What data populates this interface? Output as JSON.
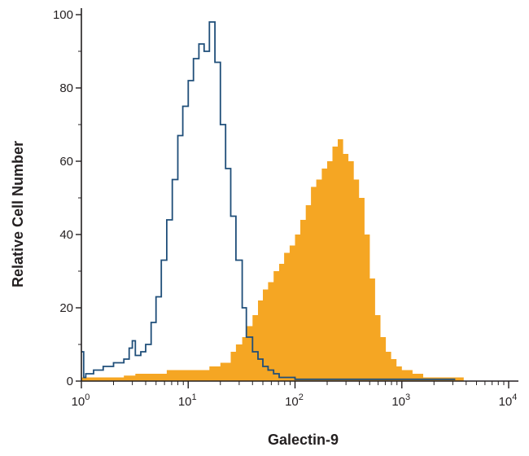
{
  "chart_data": {
    "type": "area",
    "title": "",
    "xlabel": "Galectin-9",
    "ylabel": "Relative Cell Number",
    "x_scale": "log10",
    "xlim": [
      1,
      10000
    ],
    "ylim": [
      0,
      100
    ],
    "x_ticks": [
      {
        "value": 1,
        "base": "10",
        "exp": "0"
      },
      {
        "value": 10,
        "base": "10",
        "exp": "1"
      },
      {
        "value": 100,
        "base": "10",
        "exp": "2"
      },
      {
        "value": 1000,
        "base": "10",
        "exp": "3"
      },
      {
        "value": 10000,
        "base": "10",
        "exp": "4"
      }
    ],
    "y_ticks": [
      "0",
      "20",
      "40",
      "60",
      "80",
      "100"
    ],
    "y_tick_values": [
      0,
      20,
      40,
      60,
      80,
      100
    ],
    "grid": false,
    "legend": "none",
    "series": [
      {
        "style": "filled",
        "color": "#f5a623",
        "x": [
          1.0,
          1.6,
          2.0,
          2.5,
          3.2,
          4.0,
          5.0,
          6.3,
          8.0,
          10,
          12.6,
          15.8,
          20,
          25,
          28,
          32,
          35,
          40,
          45,
          50,
          56,
          63,
          71,
          79,
          89,
          100,
          112,
          126,
          141,
          158,
          178,
          200,
          224,
          251,
          282,
          316,
          355,
          398,
          447,
          501,
          562,
          631,
          708,
          794,
          891,
          1000,
          1259,
          1585,
          1995,
          2512,
          3162,
          3800
        ],
        "y": [
          1,
          1,
          1,
          1.5,
          2,
          2,
          2,
          3,
          3,
          3,
          3,
          4,
          5,
          8,
          10,
          12,
          15,
          18,
          22,
          25,
          27,
          30,
          32,
          35,
          37,
          40,
          44,
          48,
          53,
          55,
          58,
          60,
          64,
          66,
          62,
          60,
          55,
          50,
          40,
          28,
          18,
          12,
          8,
          6,
          4,
          3,
          2,
          1,
          1,
          1,
          1,
          1
        ]
      },
      {
        "style": "outline",
        "color": "#1f4e79",
        "x": [
          1.0,
          1.05,
          1.1,
          1.3,
          1.6,
          2.0,
          2.5,
          2.8,
          3.0,
          3.2,
          3.6,
          4.0,
          4.5,
          5.0,
          5.6,
          6.3,
          7.1,
          8.0,
          8.9,
          10,
          11.2,
          12.6,
          14.1,
          15.8,
          17.8,
          20,
          22.4,
          25,
          28,
          32,
          35,
          40,
          45,
          50,
          56,
          63,
          71,
          80,
          100,
          126,
          158,
          200,
          251,
          316,
          398,
          501,
          631,
          1000,
          1585,
          2512,
          3162
        ],
        "y": [
          8,
          1,
          2,
          3,
          4,
          5,
          6,
          9,
          11,
          7,
          8,
          10,
          16,
          23,
          33,
          44,
          55,
          67,
          75,
          82,
          88,
          92,
          90,
          98,
          87,
          70,
          58,
          45,
          33,
          20,
          12,
          8,
          6,
          4,
          3,
          2,
          1,
          1,
          0.5,
          0.5,
          0.5,
          0.5,
          0.5,
          0.5,
          0.5,
          0.5,
          0.5,
          0.5,
          0.5,
          0.5,
          0.5
        ]
      }
    ]
  }
}
